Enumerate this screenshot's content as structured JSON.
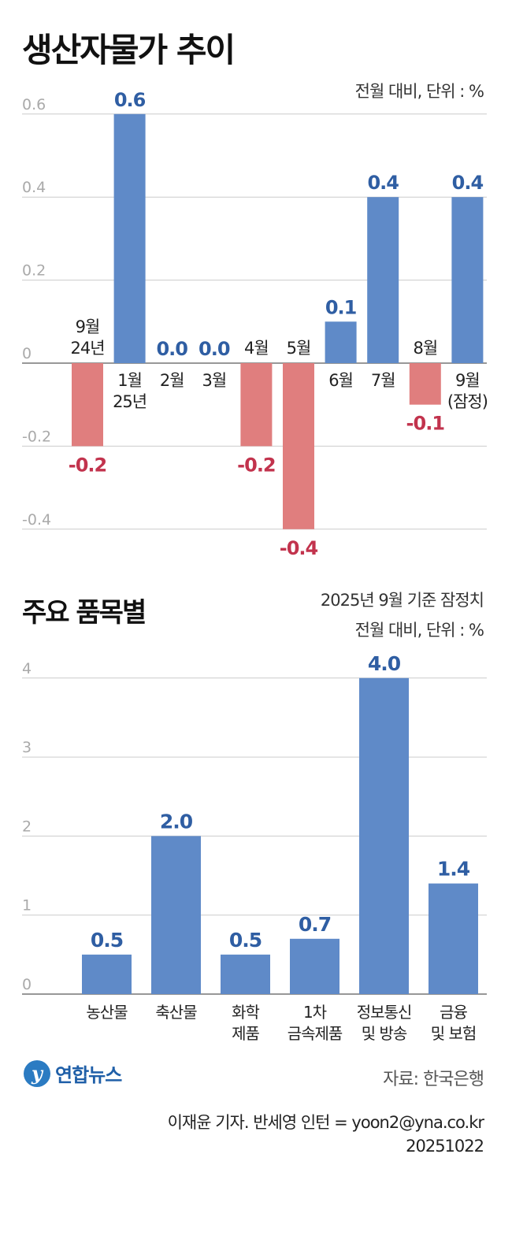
{
  "header": {
    "title1": "생산자물가 추이",
    "unit1": "전월 대비, 단위 : %",
    "title2": "주요 품목별",
    "basis2": "2025년 9월 기준 잠정치",
    "unit2": "전월 대비, 단위 : %"
  },
  "colors": {
    "positive": "#5f8ac8",
    "negative": "#e07e7e",
    "positive_label": "#2f5ea3",
    "negative_label": "#c2334d",
    "grid": "#cccccc",
    "axis_tick": "#aaaaaa"
  },
  "chart_data": [
    {
      "type": "bar",
      "title": "생산자물가 추이",
      "subtitle": "전월 대비, 단위 : %",
      "categories": [
        [
          "9월",
          "24년"
        ],
        [
          "1월",
          "25년"
        ],
        [
          "2월"
        ],
        [
          "3월"
        ],
        [
          "4월"
        ],
        [
          "5월"
        ],
        [
          "6월"
        ],
        [
          "7월"
        ],
        [
          "8월"
        ],
        [
          "9월",
          "(잠정)"
        ]
      ],
      "values": [
        -0.2,
        0.6,
        0.0,
        0.0,
        -0.2,
        -0.4,
        0.1,
        0.4,
        -0.1,
        0.4
      ],
      "value_labels": [
        "-0.2",
        "0.6",
        "0.0",
        "0.0",
        "-0.2",
        "-0.4",
        "0.1",
        "0.4",
        "-0.1",
        "0.4"
      ],
      "yticks": [
        0.6,
        0.4,
        0.2,
        0,
        -0.2,
        -0.4
      ],
      "ytick_labels": [
        "0.6",
        "0.4",
        "0.2",
        "0",
        "-0.2",
        "-0.4"
      ],
      "ylim": [
        -0.4,
        0.6
      ],
      "grid": true
    },
    {
      "type": "bar",
      "title": "주요 품목별",
      "subtitle": "2025년 9월 기준 잠정치",
      "categories": [
        [
          "농산물"
        ],
        [
          "축산물"
        ],
        [
          "화학",
          "제품"
        ],
        [
          "1차",
          "금속제품"
        ],
        [
          "정보통신",
          "및 방송"
        ],
        [
          "금융",
          "및 보험"
        ]
      ],
      "values": [
        0.5,
        2.0,
        0.5,
        0.7,
        4.0,
        1.4
      ],
      "value_labels": [
        "0.5",
        "2.0",
        "0.5",
        "0.7",
        "4.0",
        "1.4"
      ],
      "yticks": [
        4,
        3,
        2,
        1,
        0
      ],
      "ytick_labels": [
        "4",
        "3",
        "2",
        "1",
        "0"
      ],
      "ylim": [
        0,
        4
      ],
      "grid": true
    }
  ],
  "footer": {
    "logo_text": "연합뉴스",
    "source": "자료: 한국은행",
    "credit": "이재윤 기자. 반세영 인턴 = yoon2@yna.co.kr",
    "date": "20251022"
  }
}
